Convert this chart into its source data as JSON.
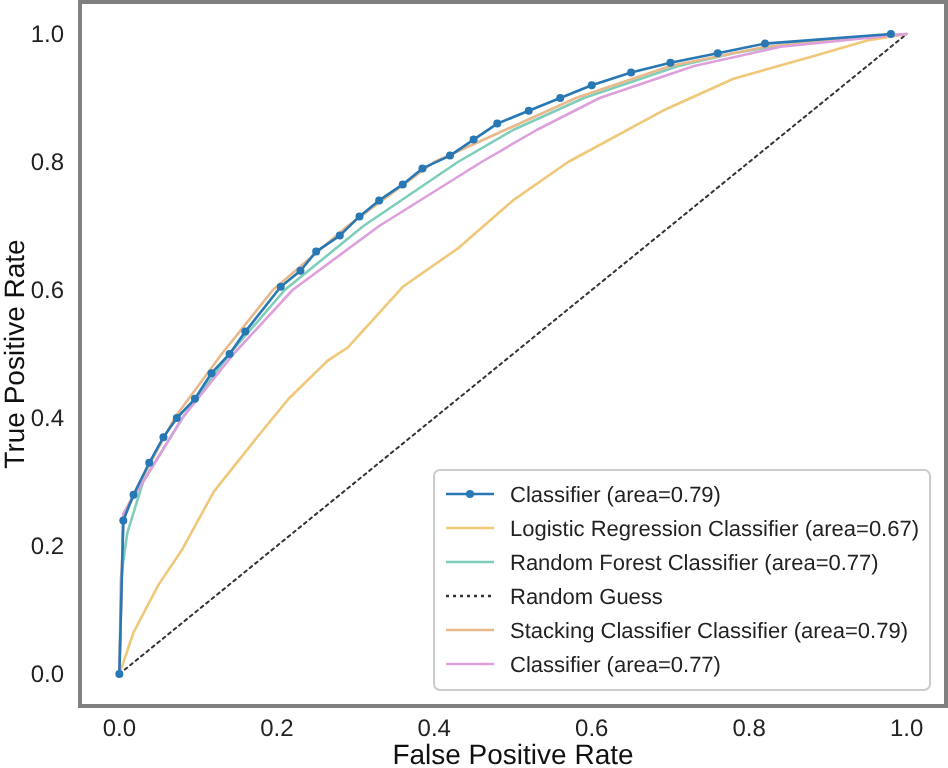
{
  "chart_data": {
    "type": "line",
    "xlabel": "False Positive Rate",
    "ylabel": "True Positive Rate",
    "xlim": [
      -0.05,
      1.05
    ],
    "ylim": [
      -0.05,
      1.05
    ],
    "xticks": [
      {
        "value": 0,
        "label": "0.0"
      },
      0.2,
      0.4,
      0.6,
      0.8,
      {
        "value": 1,
        "label": "1.0"
      }
    ],
    "yticks": [
      {
        "value": 0,
        "label": "0.0"
      },
      0.2,
      0.4,
      0.6,
      0.8,
      {
        "value": 1,
        "label": "1.0"
      }
    ],
    "grid": false,
    "legend": "bottom right",
    "series": [
      {
        "name": "Classifier (area=0.79)",
        "color": "#2878b5",
        "marker": "circle",
        "line_style": "solid",
        "x": [
          0,
          0.005,
          0.018,
          0.038,
          0.056,
          0.073,
          0.096,
          0.117,
          0.14,
          0.16,
          0.205,
          0.23,
          0.25,
          0.28,
          0.305,
          0.33,
          0.36,
          0.385,
          0.42,
          0.45,
          0.48,
          0.52,
          0.56,
          0.6,
          0.65,
          0.7,
          0.76,
          0.82,
          0.98
        ],
        "values": [
          0,
          0.24,
          0.28,
          0.33,
          0.37,
          0.4,
          0.43,
          0.47,
          0.5,
          0.535,
          0.605,
          0.63,
          0.66,
          0.685,
          0.715,
          0.74,
          0.765,
          0.79,
          0.81,
          0.835,
          0.86,
          0.88,
          0.9,
          0.92,
          0.94,
          0.955,
          0.97,
          0.985,
          1
        ]
      },
      {
        "name": "Logistic Regression Classifier (area=0.67)",
        "color": "#f0c87a",
        "marker": "none",
        "line_style": "solid",
        "x": [
          0,
          0.018,
          0.05,
          0.08,
          0.12,
          0.175,
          0.215,
          0.265,
          0.29,
          0.36,
          0.43,
          0.5,
          0.57,
          0.69,
          0.78,
          0.88,
          0.95,
          1
        ],
        "values": [
          0,
          0.065,
          0.14,
          0.195,
          0.285,
          0.37,
          0.43,
          0.49,
          0.51,
          0.605,
          0.665,
          0.74,
          0.8,
          0.88,
          0.93,
          0.965,
          0.99,
          1
        ]
      },
      {
        "name": "Random Forest Classifier (area=0.77)",
        "color": "#7fcdbb",
        "marker": "none",
        "line_style": "solid",
        "x": [
          0,
          0.002,
          0.01,
          0.03,
          0.08,
          0.14,
          0.21,
          0.31,
          0.43,
          0.5,
          0.59,
          0.71,
          0.78,
          0.88,
          1
        ],
        "values": [
          0,
          0.15,
          0.22,
          0.3,
          0.4,
          0.5,
          0.6,
          0.7,
          0.8,
          0.85,
          0.9,
          0.95,
          0.97,
          0.99,
          1
        ]
      },
      {
        "name": "Random Guess",
        "color": "#333333",
        "marker": "none",
        "line_style": "dotted",
        "x": [
          0,
          1
        ],
        "values": [
          0,
          1
        ]
      },
      {
        "name": "Stacking Classifier Classifier (area=0.79)",
        "color": "#e8b98a",
        "marker": "none",
        "line_style": "solid",
        "x": [
          0,
          0.005,
          0.07,
          0.13,
          0.195,
          0.29,
          0.4,
          0.58,
          0.7,
          0.82,
          1
        ],
        "values": [
          0,
          0.25,
          0.4,
          0.5,
          0.6,
          0.7,
          0.8,
          0.9,
          0.95,
          0.98,
          1
        ]
      },
      {
        "name": "Classifier (area=0.77)",
        "color": "#dda0dd",
        "marker": "none",
        "line_style": "solid",
        "x": [
          0,
          0.005,
          0.08,
          0.145,
          0.22,
          0.33,
          0.46,
          0.53,
          0.61,
          0.73,
          0.84,
          1
        ],
        "values": [
          0,
          0.25,
          0.4,
          0.5,
          0.6,
          0.7,
          0.8,
          0.85,
          0.9,
          0.95,
          0.98,
          1
        ]
      }
    ]
  }
}
